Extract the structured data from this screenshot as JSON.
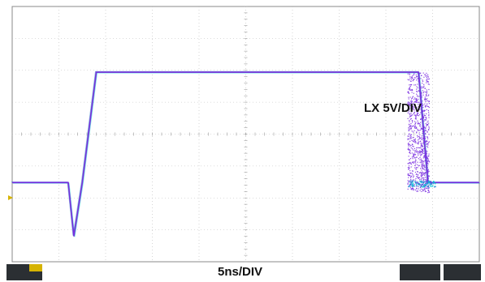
{
  "chart_data": {
    "type": "line",
    "title": "",
    "xlabel": "5ns/DIV",
    "ylabel": "",
    "channel_label": "LX 5V/DIV",
    "x_unit": "ns",
    "y_unit": "V",
    "x_per_div": 5,
    "y_per_div": 5,
    "xlim": [
      0,
      50
    ],
    "ylim": [
      -20,
      20
    ],
    "grid": true,
    "series": [
      {
        "color": "#7a2ee0",
        "x": [
          0,
          6.0,
          6.6,
          7.5,
          9.0,
          42.0,
          43.5,
          44.5,
          46.0,
          50.0
        ],
        "y": [
          -7.6,
          -7.6,
          -16.0,
          -7.6,
          9.7,
          9.7,
          9.7,
          -7.6,
          -7.6,
          -7.6
        ]
      }
    ],
    "colors": {
      "trace_main": "#7a2ee0",
      "trace_alt": [
        "#3a7bd5",
        "#2bb673",
        "#e05a2e",
        "#00c8d7"
      ],
      "grid": "#bbbbbb",
      "frame": "#888888"
    }
  }
}
